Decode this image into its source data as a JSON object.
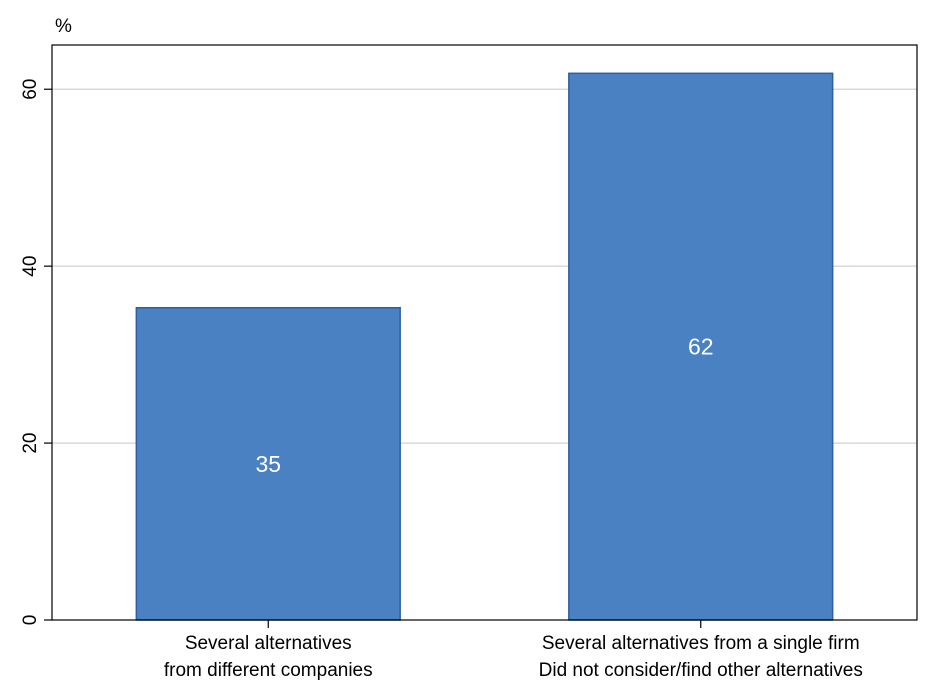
{
  "chart_data": {
    "type": "bar",
    "ylabel": "%",
    "xlabel": "",
    "categories": [
      [
        "Several alternatives",
        "from different companies"
      ],
      [
        "Several alternatives from a single firm",
        "Did not consider/find other alternatives"
      ]
    ],
    "values": [
      35.3,
      61.8
    ],
    "data_labels": [
      "35",
      "62"
    ],
    "ylim": [
      0,
      65
    ],
    "yticks": [
      0,
      20,
      40,
      60
    ],
    "ytick_labels": [
      "0",
      "20",
      "40",
      "60"
    ],
    "grid": true,
    "colors": {
      "bar_fill": "#4a81c2",
      "bar_stroke": "#2f5f9e",
      "grid": "#d9d9d9",
      "axis": "#000000",
      "data_label": "#ffffff"
    }
  }
}
